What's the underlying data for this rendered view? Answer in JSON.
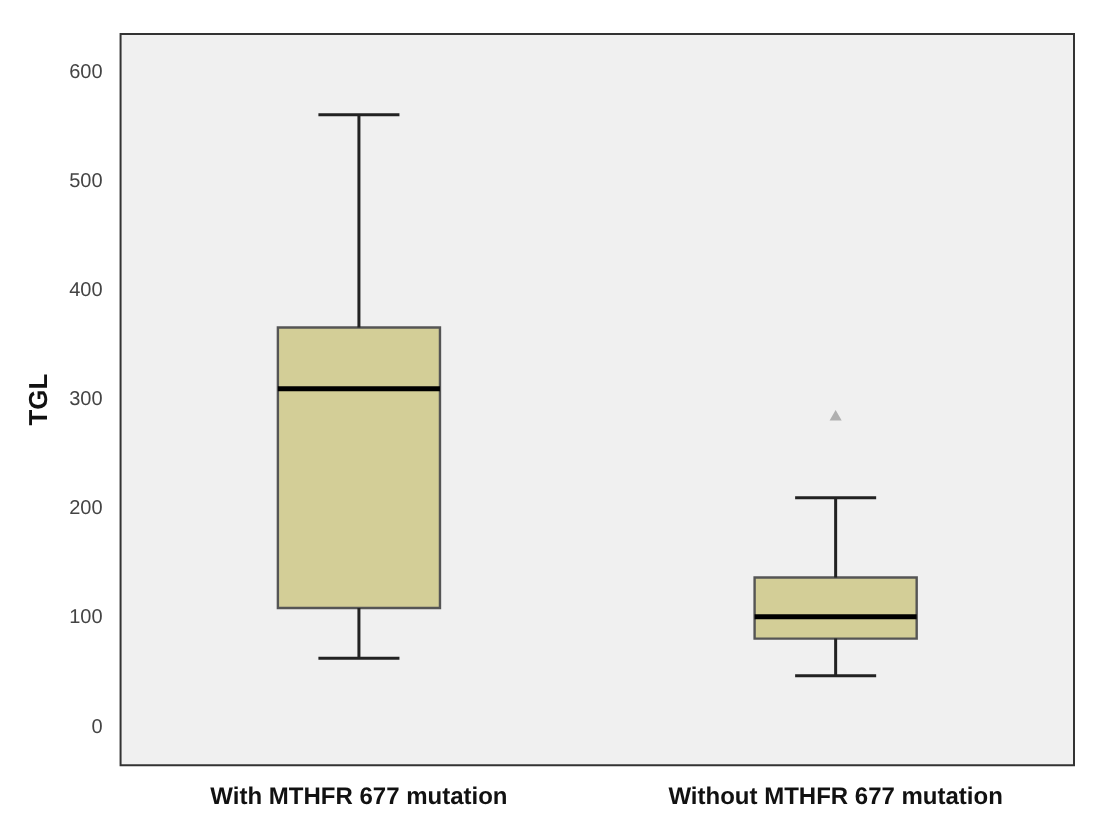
{
  "chart_data": {
    "type": "box",
    "ylabel": "TGL",
    "categories": [
      "With MTHFR 677 mutation",
      "Without MTHFR 677 mutation"
    ],
    "color": "#d3ce97",
    "boxes": [
      {
        "low": 63,
        "q1": 109,
        "median": 310,
        "q3": 366,
        "high": 561
      },
      {
        "low": 47,
        "q1": 81,
        "median": 101,
        "q3": 137,
        "high": 210,
        "outliers": [
          284
        ]
      }
    ],
    "ylim": [
      -35,
      635
    ],
    "yticks": [
      0,
      100,
      200,
      300,
      400,
      500,
      600
    ],
    "grid": false,
    "legend": false
  }
}
